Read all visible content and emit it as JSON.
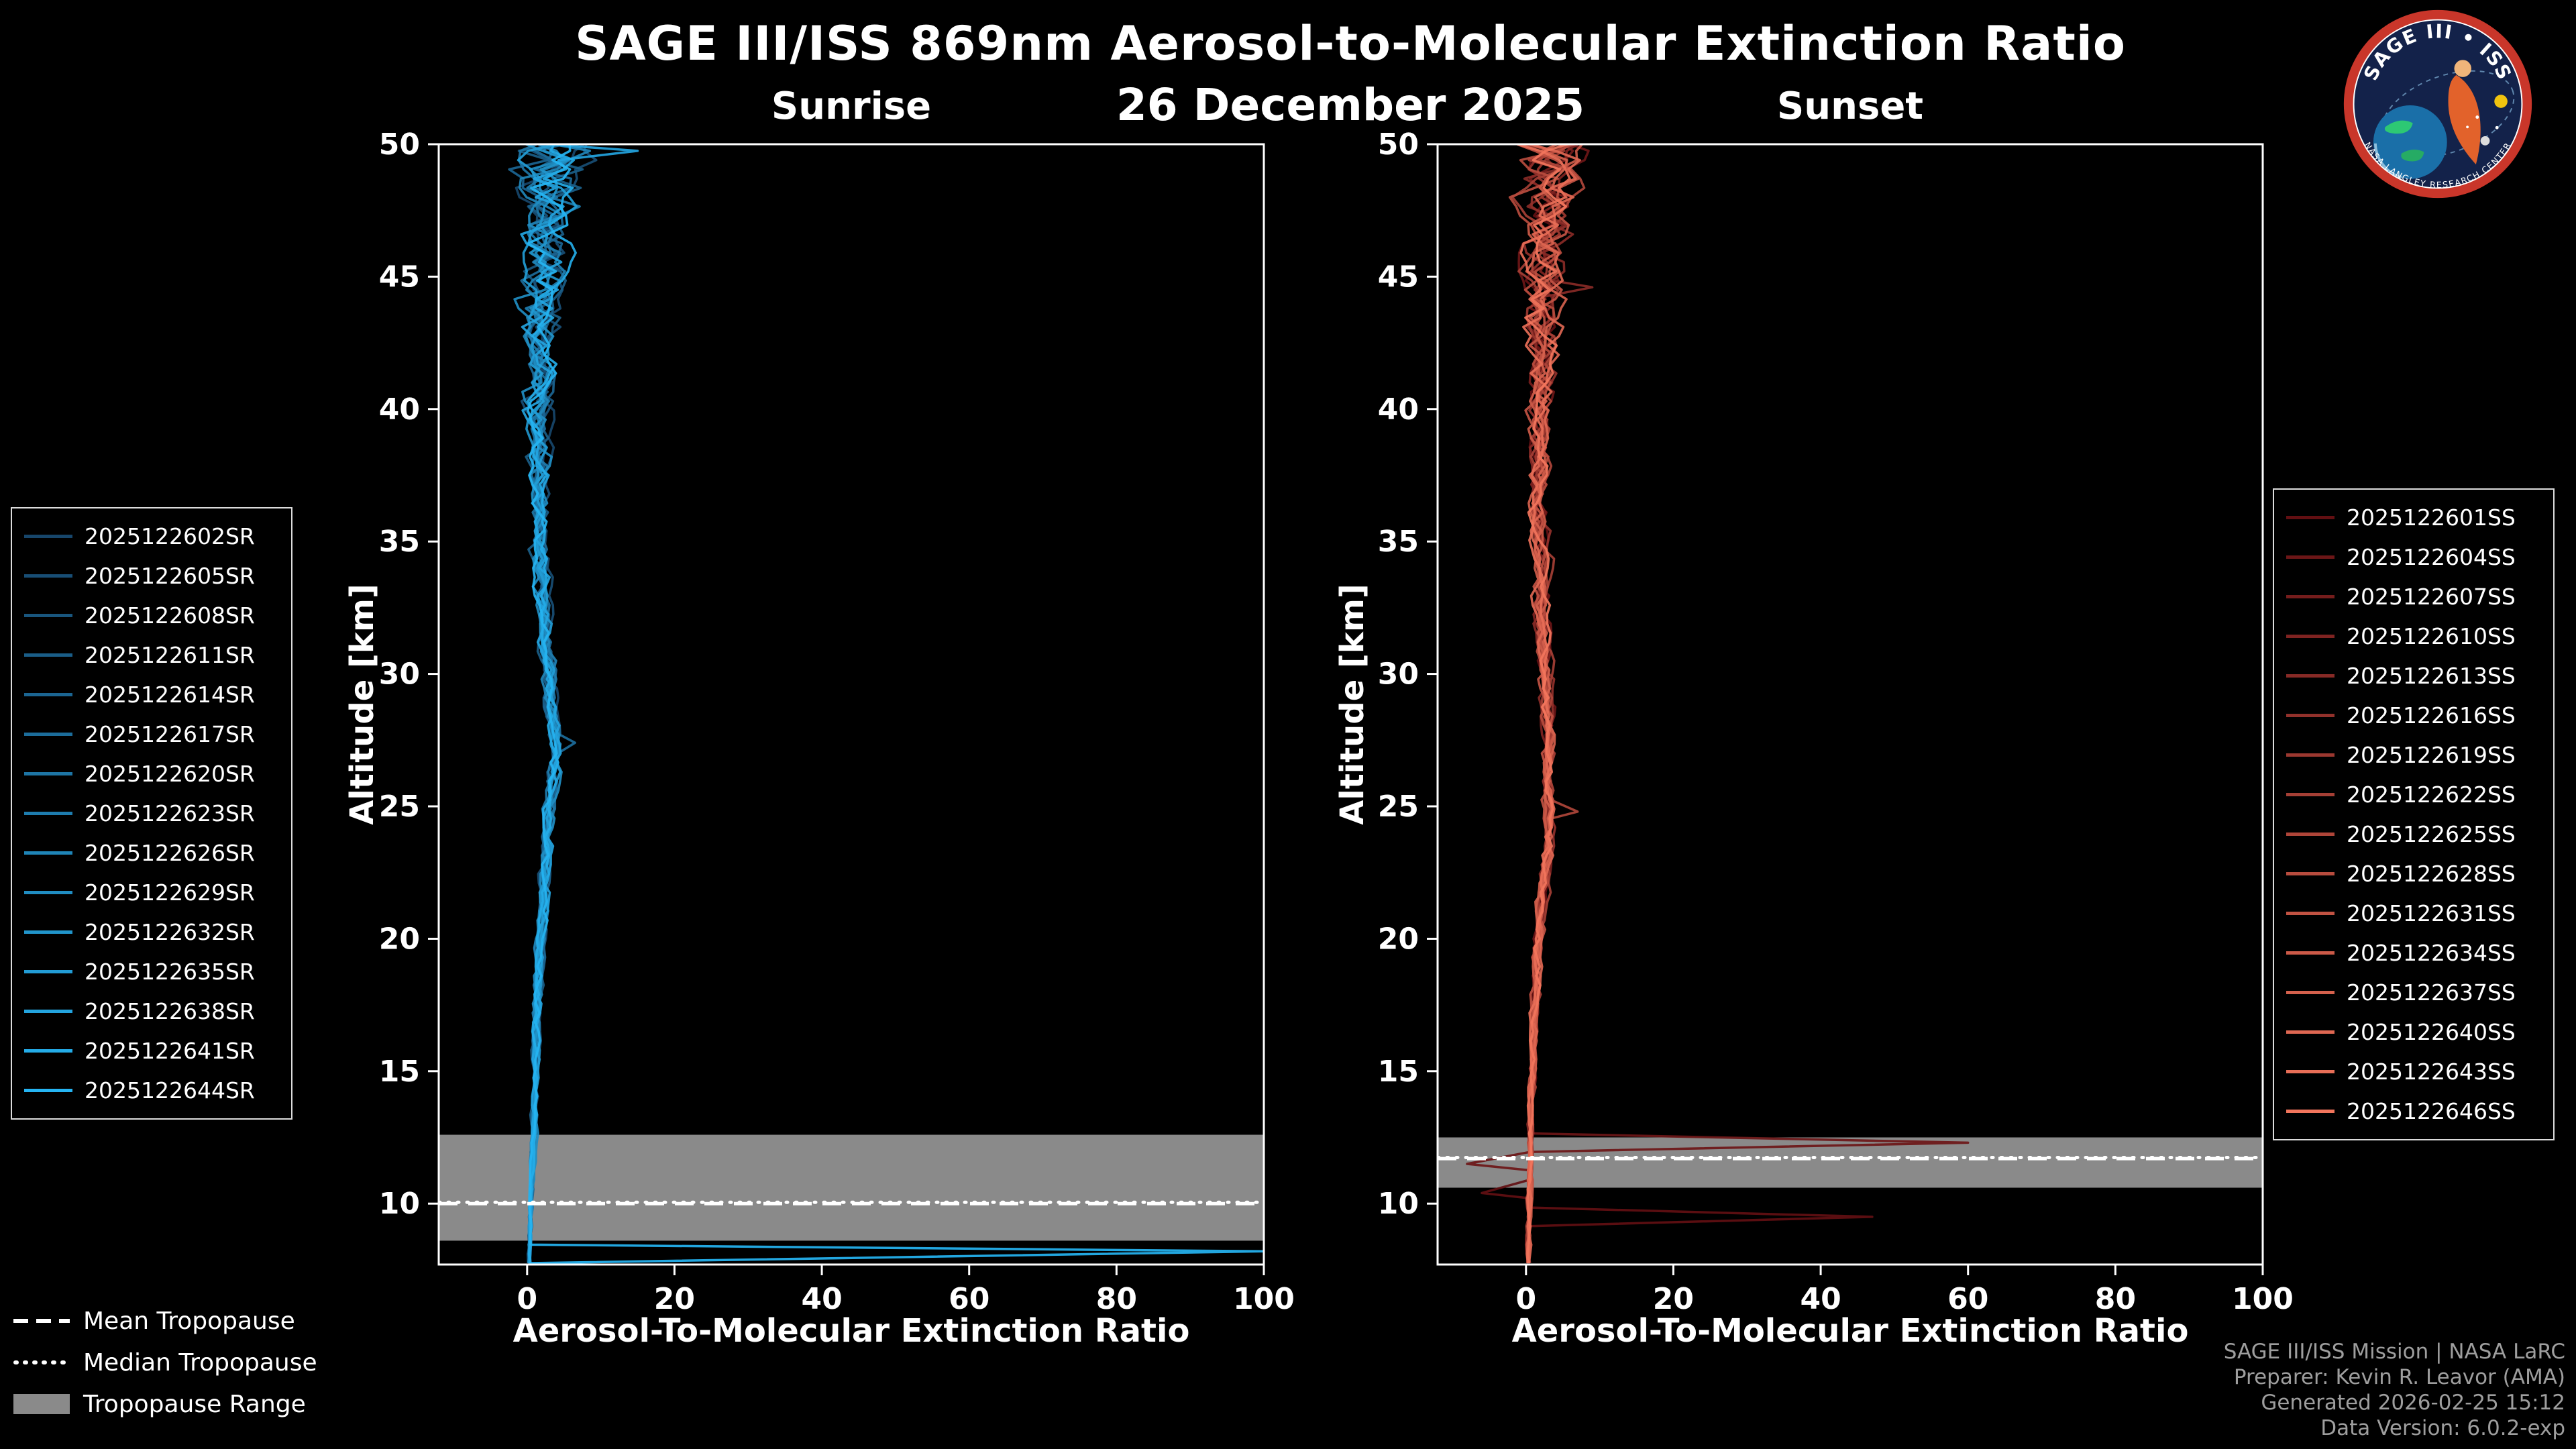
{
  "header": {
    "title": "SAGE III/ISS 869nm Aerosol-to-Molecular Extinction Ratio",
    "date": "26 December 2025"
  },
  "logo": {
    "title": "SAGE III • ISS",
    "subtitle": "NASA LANGLEY RESEARCH CENTER"
  },
  "tropopause_legend": {
    "mean": "Mean Tropopause",
    "median": "Median Tropopause",
    "range": "Tropopause Range"
  },
  "credits": {
    "lines": [
      "SAGE III/ISS Mission | NASA LaRC",
      "Preparer: Kevin R. Leavor (AMA)",
      "Generated 2026-02-25 15:12",
      "Data Version: 6.0.2-exp"
    ]
  },
  "chart_data": [
    {
      "id": "sunrise",
      "type": "line",
      "panel_title": "Sunrise",
      "xlabel": "Aerosol-To-Molecular Extinction Ratio",
      "ylabel": "Altitude [km]",
      "xlim": [
        -12,
        100
      ],
      "ylim": [
        7.7,
        50
      ],
      "xticks": [
        0,
        20,
        40,
        60,
        80,
        100
      ],
      "yticks": [
        10,
        15,
        20,
        25,
        30,
        35,
        40,
        45,
        50
      ],
      "grid": false,
      "legend_position": "outside-left",
      "color_start": "#17466b",
      "color_end": "#25b4f2",
      "band_color": "#8a8a8a",
      "tropopause_line_color": "#ffffff",
      "tropopause": {
        "mean": 10.0,
        "median": 10.05,
        "range": [
          8.6,
          12.6
        ]
      },
      "base_profile": [
        [
          7.8,
          0.3
        ],
        [
          9,
          0.4
        ],
        [
          12,
          0.8
        ],
        [
          16,
          1.2
        ],
        [
          20,
          1.8
        ],
        [
          24,
          2.8
        ],
        [
          27,
          3.8
        ],
        [
          30,
          3.0
        ],
        [
          34,
          1.8
        ],
        [
          38,
          1.6
        ],
        [
          42,
          1.8
        ],
        [
          46,
          2.5
        ],
        [
          50,
          3.5
        ]
      ],
      "noise_profile": [
        [
          7.8,
          0.15
        ],
        [
          12,
          0.3
        ],
        [
          20,
          0.5
        ],
        [
          30,
          0.7
        ],
        [
          38,
          1.0
        ],
        [
          43,
          1.8
        ],
        [
          47,
          2.8
        ],
        [
          50,
          4.2
        ]
      ],
      "series": [
        {
          "name": "2025122602SR",
          "seed": 3,
          "noise": 1.0
        },
        {
          "name": "2025122605SR",
          "seed": 7,
          "noise": 1.1
        },
        {
          "name": "2025122608SR",
          "seed": 12,
          "noise": 0.9
        },
        {
          "name": "2025122611SR",
          "seed": 19,
          "noise": 1.2
        },
        {
          "name": "2025122614SR",
          "seed": 23,
          "noise": 1.0
        },
        {
          "name": "2025122617SR",
          "seed": 31,
          "noise": 1.0,
          "spikes": [
            [
              27.4,
              6.5
            ]
          ]
        },
        {
          "name": "2025122620SR",
          "seed": 37,
          "noise": 0.8
        },
        {
          "name": "2025122623SR",
          "seed": 41,
          "noise": 1.1
        },
        {
          "name": "2025122626SR",
          "seed": 47,
          "noise": 1.0
        },
        {
          "name": "2025122629SR",
          "seed": 53,
          "noise": 1.2
        },
        {
          "name": "2025122632SR",
          "seed": 59,
          "noise": 0.9
        },
        {
          "name": "2025122635SR",
          "seed": 61,
          "noise": 1.0
        },
        {
          "name": "2025122638SR",
          "seed": 67,
          "noise": 1.1,
          "spikes": [
            [
              49.75,
              15
            ]
          ]
        },
        {
          "name": "2025122641SR",
          "seed": 71,
          "noise": 1.0
        },
        {
          "name": "2025122644SR",
          "seed": 79,
          "noise": 1.0,
          "spikes": [
            [
              8.2,
              100
            ]
          ]
        }
      ]
    },
    {
      "id": "sunset",
      "type": "line",
      "panel_title": "Sunset",
      "xlabel": "Aerosol-To-Molecular Extinction Ratio",
      "ylabel": "Altitude [km]",
      "xlim": [
        -12,
        100
      ],
      "ylim": [
        7.7,
        50
      ],
      "xticks": [
        0,
        20,
        40,
        60,
        80,
        100
      ],
      "yticks": [
        10,
        15,
        20,
        25,
        30,
        35,
        40,
        45,
        50
      ],
      "grid": false,
      "legend_position": "outside-right",
      "color_start": "#620f12",
      "color_end": "#f2755c",
      "band_color": "#8a8a8a",
      "tropopause_line_color": "#ffffff",
      "tropopause": {
        "mean": 11.7,
        "median": 11.74,
        "range": [
          10.6,
          12.5
        ]
      },
      "base_profile": [
        [
          7.8,
          0.3
        ],
        [
          9,
          0.4
        ],
        [
          12,
          0.6
        ],
        [
          16,
          1.0
        ],
        [
          20,
          1.6
        ],
        [
          24,
          3.2
        ],
        [
          28,
          3.0
        ],
        [
          32,
          2.2
        ],
        [
          36,
          1.8
        ],
        [
          40,
          1.8
        ],
        [
          44,
          2.2
        ],
        [
          48,
          3.0
        ],
        [
          50,
          3.2
        ]
      ],
      "noise_profile": [
        [
          7.8,
          0.2
        ],
        [
          12,
          0.3
        ],
        [
          20,
          0.5
        ],
        [
          30,
          0.7
        ],
        [
          38,
          1.0
        ],
        [
          43,
          1.7
        ],
        [
          47,
          2.6
        ],
        [
          50,
          3.8
        ]
      ],
      "series": [
        {
          "name": "2025122601SS",
          "seed": 5,
          "noise": 1.0,
          "spikes": [
            [
              9.5,
              47
            ],
            [
              10.4,
              -6
            ]
          ]
        },
        {
          "name": "2025122604SS",
          "seed": 9,
          "noise": 1.1,
          "spikes": [
            [
              12.3,
              60
            ],
            [
              11.5,
              -8
            ]
          ]
        },
        {
          "name": "2025122607SS",
          "seed": 14,
          "noise": 0.9
        },
        {
          "name": "2025122610SS",
          "seed": 21,
          "noise": 1.0
        },
        {
          "name": "2025122613SS",
          "seed": 27,
          "noise": 1.1,
          "spikes": [
            [
              44.6,
              9
            ]
          ]
        },
        {
          "name": "2025122616SS",
          "seed": 33,
          "noise": 1.0
        },
        {
          "name": "2025122619SS",
          "seed": 39,
          "noise": 0.8
        },
        {
          "name": "2025122622SS",
          "seed": 43,
          "noise": 1.2
        },
        {
          "name": "2025122625SS",
          "seed": 49,
          "noise": 1.0,
          "spikes": [
            [
              24.8,
              7
            ]
          ]
        },
        {
          "name": "2025122628SS",
          "seed": 55,
          "noise": 1.0
        },
        {
          "name": "2025122631SS",
          "seed": 60,
          "noise": 1.1
        },
        {
          "name": "2025122634SS",
          "seed": 64,
          "noise": 0.9
        },
        {
          "name": "2025122637SS",
          "seed": 68,
          "noise": 1.0
        },
        {
          "name": "2025122640SS",
          "seed": 73,
          "noise": 1.1
        },
        {
          "name": "2025122643SS",
          "seed": 77,
          "noise": 1.0
        },
        {
          "name": "2025122646SS",
          "seed": 83,
          "noise": 1.0
        }
      ]
    }
  ]
}
